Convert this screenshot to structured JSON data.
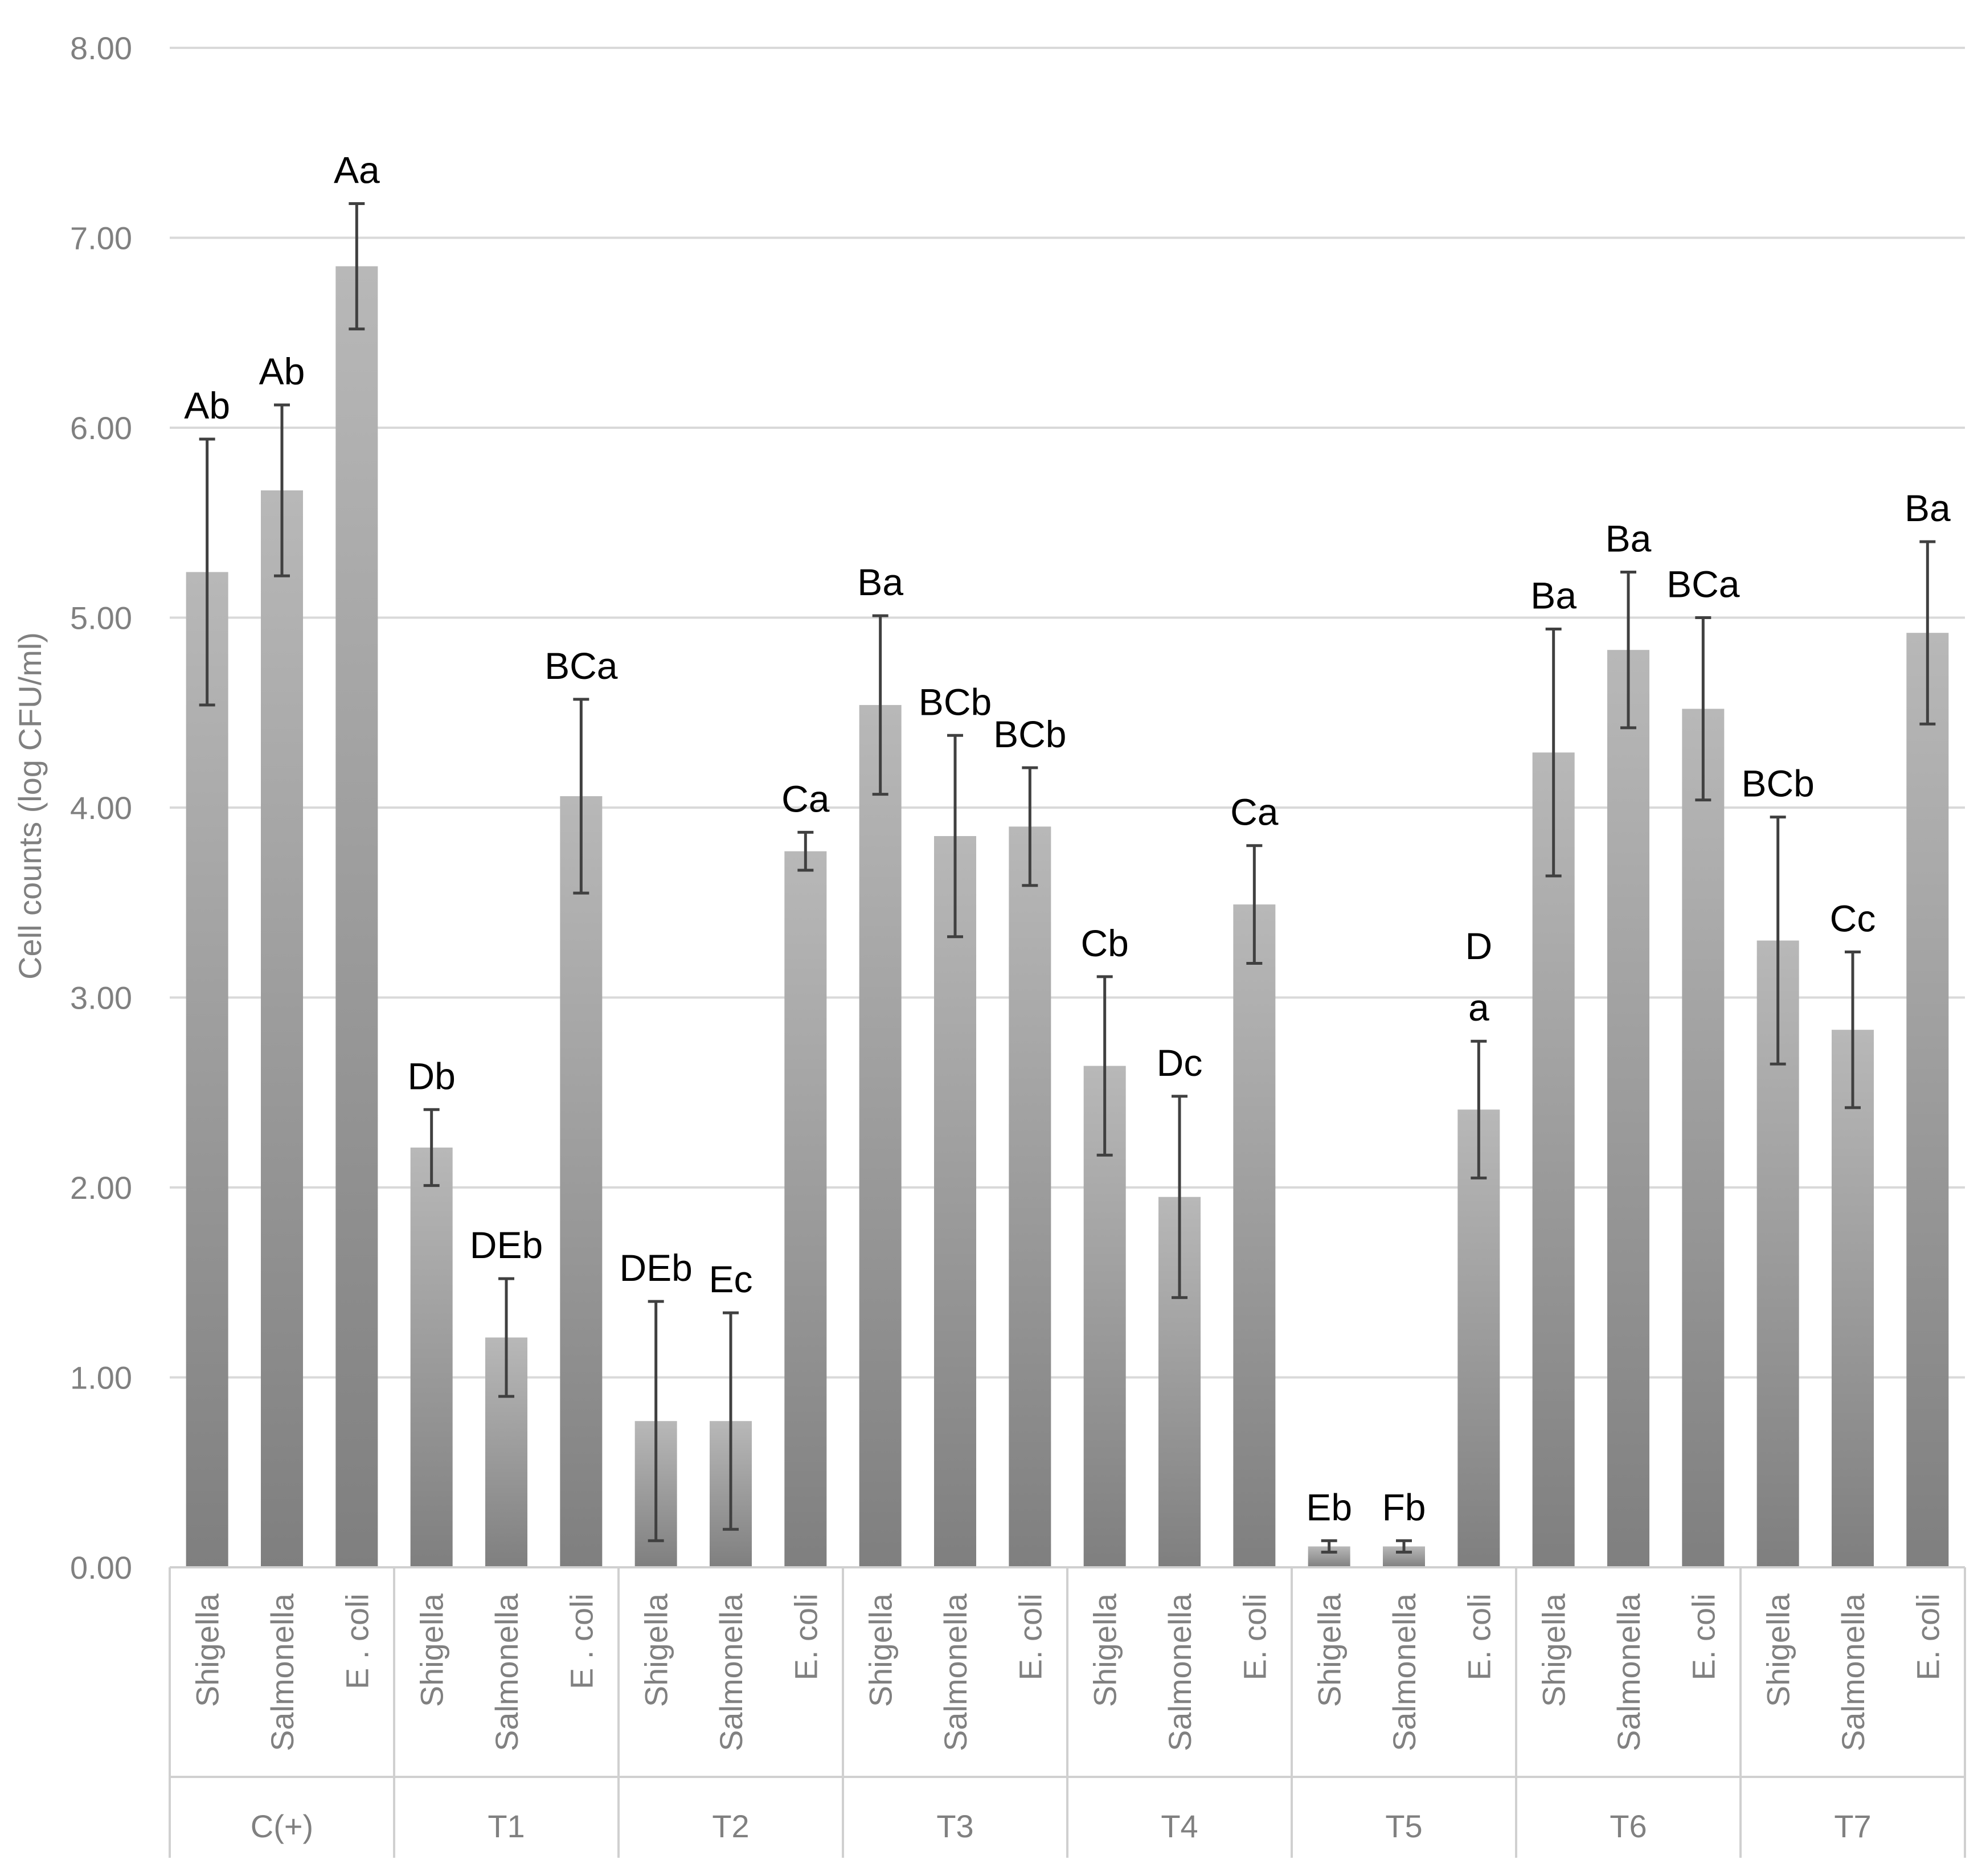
{
  "chart_data": {
    "type": "bar",
    "title": "",
    "xlabel": "",
    "ylabel": "Cell counts (log CFU/ml)",
    "ylim": [
      0,
      8
    ],
    "y_ticks": [
      "0.00",
      "1.00",
      "2.00",
      "3.00",
      "4.00",
      "5.00",
      "6.00",
      "7.00",
      "8.00"
    ],
    "grid": true,
    "groups": [
      {
        "name": "C(+)",
        "bars": [
          {
            "category": "Shigella",
            "value": 5.24,
            "error": 0.7,
            "label": "Ab"
          },
          {
            "category": "Salmonella",
            "value": 5.67,
            "error": 0.45,
            "label": "Ab"
          },
          {
            "category": "E . coli",
            "value": 6.85,
            "error": 0.33,
            "label": "Aa"
          }
        ]
      },
      {
        "name": "T1",
        "bars": [
          {
            "category": "Shigella",
            "value": 2.21,
            "error": 0.2,
            "label": "Db"
          },
          {
            "category": "Salmonella",
            "value": 1.21,
            "error": 0.31,
            "label": "DEb"
          },
          {
            "category": "E . coli",
            "value": 4.06,
            "error": 0.51,
            "label": "BCa"
          }
        ]
      },
      {
        "name": "T2",
        "bars": [
          {
            "category": "Shigella",
            "value": 0.77,
            "error": 0.63,
            "label": "DEb"
          },
          {
            "category": "Salmonella",
            "value": 0.77,
            "error": 0.57,
            "label": "Ec"
          },
          {
            "category": "E. coli",
            "value": 3.77,
            "error": 0.1,
            "label": "Ca"
          }
        ]
      },
      {
        "name": "T3",
        "bars": [
          {
            "category": "Shigella",
            "value": 4.54,
            "error": 0.47,
            "label": "Ba"
          },
          {
            "category": "Salmonella",
            "value": 3.85,
            "error": 0.53,
            "label": "BCb"
          },
          {
            "category": "E. coli",
            "value": 3.9,
            "error": 0.31,
            "label": "BCb"
          }
        ]
      },
      {
        "name": "T4",
        "bars": [
          {
            "category": "Shigella",
            "value": 2.64,
            "error": 0.47,
            "label": "Cb"
          },
          {
            "category": "Salmonella",
            "value": 1.95,
            "error": 0.53,
            "label": "Dc"
          },
          {
            "category": "E. coli",
            "value": 3.49,
            "error": 0.31,
            "label": "Ca"
          }
        ]
      },
      {
        "name": "T5",
        "bars": [
          {
            "category": "Shigella",
            "value": 0.11,
            "error": 0.03,
            "label": "Eb"
          },
          {
            "category": "Salmonella",
            "value": 0.11,
            "error": 0.03,
            "label": "Fb"
          },
          {
            "category": "E. coli",
            "value": 2.41,
            "error": 0.36,
            "label": "D\na"
          }
        ]
      },
      {
        "name": "T6",
        "bars": [
          {
            "category": "Shigella",
            "value": 4.29,
            "error": 0.65,
            "label": "Ba"
          },
          {
            "category": "Salmonella",
            "value": 4.83,
            "error": 0.41,
            "label": "Ba"
          },
          {
            "category": "E. coli",
            "value": 4.52,
            "error": 0.48,
            "label": "BCa"
          }
        ]
      },
      {
        "name": "T7",
        "bars": [
          {
            "category": "Shigella",
            "value": 3.3,
            "error": 0.65,
            "label": "BCb"
          },
          {
            "category": "Salmonella",
            "value": 2.83,
            "error": 0.41,
            "label": "Cc"
          },
          {
            "category": "E. coli",
            "value": 4.92,
            "error": 0.48,
            "label": "Ba"
          }
        ]
      }
    ],
    "colors": {
      "bar_top": "#b8b8b8",
      "bar_bottom": "#7f7f7f",
      "grid": "#d9d9d9",
      "axis": "#d0d0d0",
      "error_bar": "#404040"
    }
  }
}
